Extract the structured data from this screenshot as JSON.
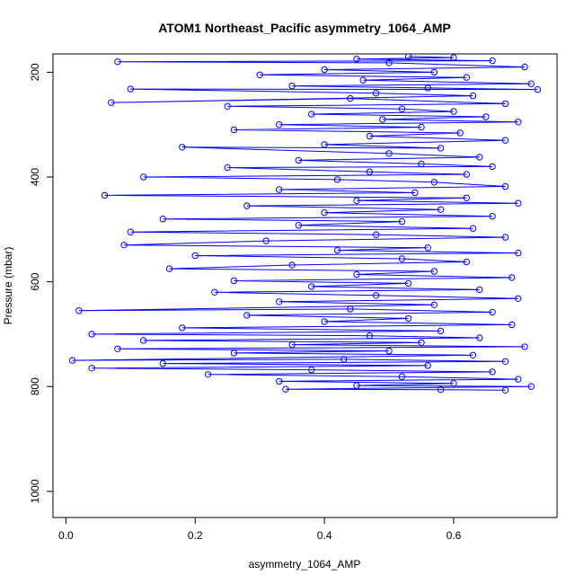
{
  "chart_data": {
    "type": "scatter",
    "title": "ATOM1 Northeast_Pacific asymmetry_1064_AMP",
    "xlabel": "asymmetry_1064_AMP",
    "ylabel": "Pressure (mbar)",
    "xlim": [
      -0.02,
      0.76
    ],
    "ylim": [
      1050,
      165
    ],
    "y_reversed": true,
    "xticks": [
      0.0,
      0.2,
      0.4,
      0.6
    ],
    "xtick_labels": [
      "0.0",
      "0.2",
      "0.4",
      "0.6"
    ],
    "yticks": [
      200,
      400,
      600,
      800,
      1000
    ],
    "ytick_labels": [
      "200",
      "400",
      "600",
      "800",
      "1000"
    ],
    "grid": false,
    "legend": "none",
    "color": "#0000FF",
    "marker": "open-circle",
    "connected": true,
    "series": [
      {
        "values": [
          [
            0.53,
            170
          ],
          [
            0.6,
            172
          ],
          [
            0.45,
            175
          ],
          [
            0.66,
            178
          ],
          [
            0.08,
            180
          ],
          [
            0.5,
            182
          ],
          [
            0.71,
            190
          ],
          [
            0.4,
            195
          ],
          [
            0.57,
            200
          ],
          [
            0.3,
            205
          ],
          [
            0.62,
            210
          ],
          [
            0.46,
            215
          ],
          [
            0.72,
            222
          ],
          [
            0.35,
            226
          ],
          [
            0.56,
            230
          ],
          [
            0.73,
            233
          ],
          [
            0.1,
            232
          ],
          [
            0.48,
            240
          ],
          [
            0.63,
            245
          ],
          [
            0.07,
            258
          ],
          [
            0.44,
            250
          ],
          [
            0.68,
            260
          ],
          [
            0.25,
            265
          ],
          [
            0.52,
            270
          ],
          [
            0.6,
            275
          ],
          [
            0.38,
            280
          ],
          [
            0.65,
            285
          ],
          [
            0.49,
            290
          ],
          [
            0.7,
            295
          ],
          [
            0.33,
            300
          ],
          [
            0.55,
            305
          ],
          [
            0.26,
            310
          ],
          [
            0.61,
            316
          ],
          [
            0.47,
            322
          ],
          [
            0.68,
            330
          ],
          [
            0.4,
            338
          ],
          [
            0.58,
            345
          ],
          [
            0.18,
            343
          ],
          [
            0.5,
            355
          ],
          [
            0.64,
            362
          ],
          [
            0.36,
            368
          ],
          [
            0.55,
            375
          ],
          [
            0.66,
            380
          ],
          [
            0.25,
            382
          ],
          [
            0.47,
            390
          ],
          [
            0.62,
            395
          ],
          [
            0.12,
            400
          ],
          [
            0.42,
            405
          ],
          [
            0.57,
            410
          ],
          [
            0.68,
            418
          ],
          [
            0.33,
            424
          ],
          [
            0.54,
            430
          ],
          [
            0.06,
            435
          ],
          [
            0.62,
            440
          ],
          [
            0.45,
            445
          ],
          [
            0.7,
            450
          ],
          [
            0.28,
            455
          ],
          [
            0.58,
            462
          ],
          [
            0.4,
            468
          ],
          [
            0.66,
            475
          ],
          [
            0.15,
            480
          ],
          [
            0.52,
            485
          ],
          [
            0.36,
            492
          ],
          [
            0.63,
            498
          ],
          [
            0.1,
            505
          ],
          [
            0.48,
            510
          ],
          [
            0.68,
            515
          ],
          [
            0.31,
            522
          ],
          [
            0.09,
            530
          ],
          [
            0.56,
            535
          ],
          [
            0.42,
            540
          ],
          [
            0.7,
            545
          ],
          [
            0.2,
            550
          ],
          [
            0.52,
            556
          ],
          [
            0.62,
            562
          ],
          [
            0.35,
            568
          ],
          [
            0.16,
            575
          ],
          [
            0.57,
            580
          ],
          [
            0.45,
            586
          ],
          [
            0.69,
            592
          ],
          [
            0.26,
            598
          ],
          [
            0.53,
            603
          ],
          [
            0.38,
            609
          ],
          [
            0.64,
            615
          ],
          [
            0.23,
            620
          ],
          [
            0.48,
            626
          ],
          [
            0.7,
            632
          ],
          [
            0.33,
            638
          ],
          [
            0.57,
            644
          ],
          [
            0.02,
            655
          ],
          [
            0.44,
            652
          ],
          [
            0.66,
            658
          ],
          [
            0.28,
            664
          ],
          [
            0.53,
            670
          ],
          [
            0.4,
            676
          ],
          [
            0.69,
            682
          ],
          [
            0.18,
            688
          ],
          [
            0.58,
            694
          ],
          [
            0.04,
            700
          ],
          [
            0.47,
            703
          ],
          [
            0.64,
            707
          ],
          [
            0.12,
            712
          ],
          [
            0.55,
            716
          ],
          [
            0.35,
            720
          ],
          [
            0.71,
            724
          ],
          [
            0.08,
            728
          ],
          [
            0.5,
            732
          ],
          [
            0.26,
            736
          ],
          [
            0.63,
            740
          ],
          [
            0.01,
            750
          ],
          [
            0.43,
            748
          ],
          [
            0.68,
            752
          ],
          [
            0.15,
            756
          ],
          [
            0.56,
            760
          ],
          [
            0.04,
            765
          ],
          [
            0.38,
            768
          ],
          [
            0.66,
            772
          ],
          [
            0.22,
            777
          ],
          [
            0.52,
            781
          ],
          [
            0.7,
            786
          ],
          [
            0.33,
            790
          ],
          [
            0.6,
            794
          ],
          [
            0.45,
            798
          ],
          [
            0.72,
            800
          ],
          [
            0.34,
            805
          ],
          [
            0.58,
            806
          ],
          [
            0.68,
            807
          ]
        ]
      }
    ]
  }
}
